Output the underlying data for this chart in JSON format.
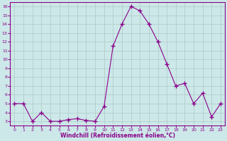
{
  "x": [
    0,
    1,
    2,
    3,
    4,
    5,
    6,
    7,
    8,
    9,
    10,
    11,
    12,
    13,
    14,
    15,
    16,
    17,
    18,
    19,
    20,
    21,
    22,
    23
  ],
  "y": [
    5,
    5,
    3,
    4,
    3,
    3,
    3.2,
    3.3,
    3.1,
    3,
    4.7,
    11.5,
    14,
    16,
    15.5,
    14,
    12,
    9.5,
    7,
    7.3,
    5,
    6.2,
    3.5,
    5
  ],
  "line_color": "#8B008B",
  "marker": "+",
  "marker_size": 4,
  "bg_color": "#cce8e8",
  "grid_color": "#b0c8c8",
  "xlabel": "Windchill (Refroidissement éolien,°C)",
  "xlabel_color": "#8B008B",
  "tick_color": "#8B008B",
  "ylim": [
    2.5,
    16.5
  ],
  "yticks": [
    3,
    4,
    5,
    6,
    7,
    8,
    9,
    10,
    11,
    12,
    13,
    14,
    15,
    16
  ],
  "xticks": [
    0,
    1,
    2,
    3,
    4,
    5,
    6,
    7,
    8,
    9,
    10,
    11,
    12,
    13,
    14,
    15,
    16,
    17,
    18,
    19,
    20,
    21,
    22,
    23
  ],
  "spine_color": "#8B008B"
}
